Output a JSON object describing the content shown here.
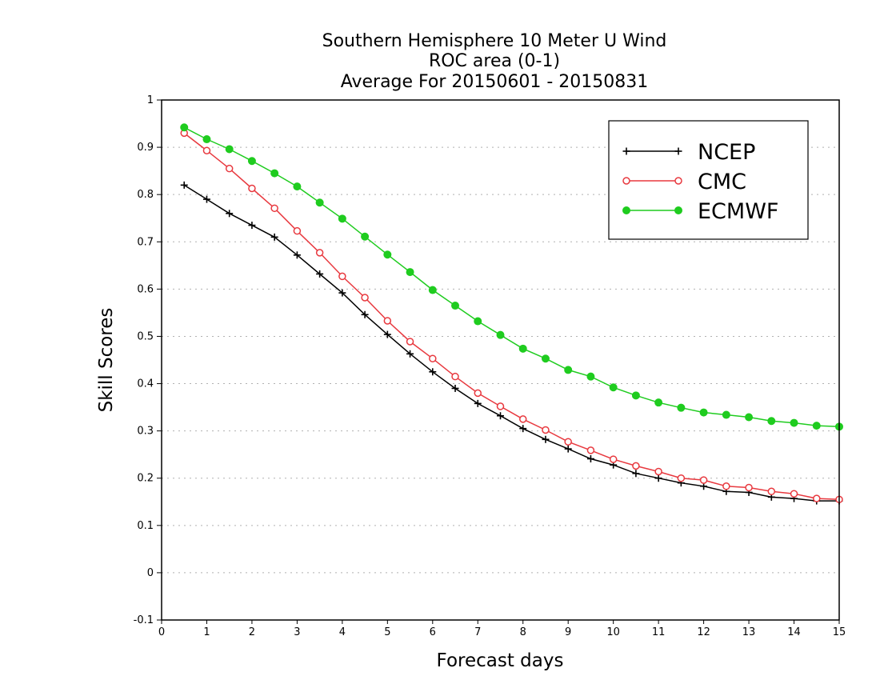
{
  "chart_data": {
    "type": "line",
    "title_lines": [
      "Southern Hemisphere 10 Meter U Wind",
      "ROC area (0-1)",
      "Average For 20150601 - 20150831"
    ],
    "xlabel": "Forecast days",
    "ylabel": "Skill Scores",
    "xlim": [
      0,
      15
    ],
    "ylim": [
      -0.1,
      1
    ],
    "x_ticks": [
      "0",
      "1",
      "2",
      "3",
      "4",
      "5",
      "6",
      "7",
      "8",
      "9",
      "10",
      "11",
      "12",
      "13",
      "14",
      "15"
    ],
    "y_ticks": [
      "-0.1",
      "0",
      "0.1",
      "0.2",
      "0.3",
      "0.4",
      "0.5",
      "0.6",
      "0.7",
      "0.8",
      "0.9",
      "1"
    ],
    "y_tick_values": [
      -0.1,
      0,
      0.1,
      0.2,
      0.3,
      0.4,
      0.5,
      0.6,
      0.7,
      0.8,
      0.9,
      1
    ],
    "grid": "horizontal dotted",
    "legend_position": "top-right",
    "x": [
      0.5,
      1,
      1.5,
      2,
      2.5,
      3,
      3.5,
      4,
      4.5,
      5,
      5.5,
      6,
      6.5,
      7,
      7.5,
      8,
      8.5,
      9,
      9.5,
      10,
      10.5,
      11,
      11.5,
      12,
      12.5,
      13,
      13.5,
      14,
      14.5,
      15
    ],
    "series": [
      {
        "name": "NCEP",
        "color": "#000000",
        "marker": "plus",
        "values": [
          0.82,
          0.79,
          0.76,
          0.735,
          0.71,
          0.672,
          0.632,
          0.592,
          0.546,
          0.504,
          0.463,
          0.425,
          0.39,
          0.358,
          0.332,
          0.305,
          0.282,
          0.262,
          0.241,
          0.228,
          0.21,
          0.2,
          0.19,
          0.183,
          0.172,
          0.17,
          0.16,
          0.157,
          0.152,
          0.152
        ]
      },
      {
        "name": "CMC",
        "color": "#e8393f",
        "marker": "open-circle",
        "values": [
          0.93,
          0.893,
          0.855,
          0.813,
          0.771,
          0.723,
          0.677,
          0.627,
          0.582,
          0.533,
          0.489,
          0.453,
          0.415,
          0.38,
          0.352,
          0.325,
          0.302,
          0.277,
          0.259,
          0.24,
          0.226,
          0.214,
          0.2,
          0.196,
          0.183,
          0.18,
          0.172,
          0.167,
          0.157,
          0.155
        ]
      },
      {
        "name": "ECMWF",
        "color": "#1fcc1f",
        "marker": "filled-circle",
        "values": [
          0.942,
          0.917,
          0.896,
          0.871,
          0.845,
          0.817,
          0.783,
          0.749,
          0.711,
          0.673,
          0.636,
          0.598,
          0.565,
          0.532,
          0.503,
          0.474,
          0.453,
          0.429,
          0.415,
          0.392,
          0.375,
          0.36,
          0.349,
          0.339,
          0.334,
          0.329,
          0.321,
          0.317,
          0.311,
          0.309
        ]
      }
    ]
  }
}
